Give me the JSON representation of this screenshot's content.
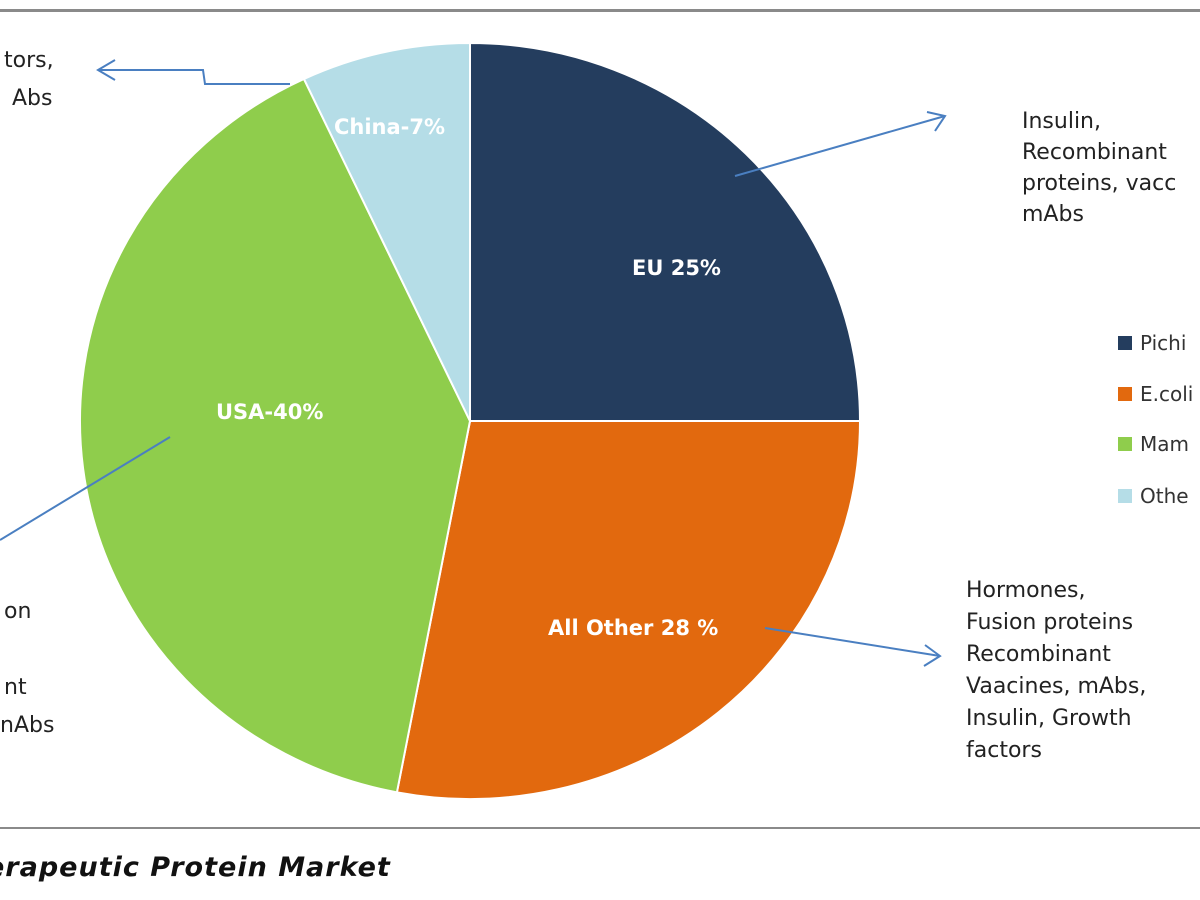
{
  "chart_data": {
    "type": "pie",
    "title": "erapeutic Protein Market",
    "slices": [
      {
        "label": "EU 25%",
        "value": 25,
        "color": "#243d5e"
      },
      {
        "label": "All Other 28 %",
        "value": 28,
        "color": "#e2690e"
      },
      {
        "label": "USA-40%",
        "value": 40,
        "color": "#8fcd4c"
      },
      {
        "label": "China-7%",
        "value": 7,
        "color": "#b5dde7"
      }
    ],
    "legend": [
      {
        "label": "Pichi",
        "color": "#243d5e"
      },
      {
        "label": "E.coli",
        "color": "#e2690e"
      },
      {
        "label": "Mam",
        "color": "#8fcd4c"
      },
      {
        "label": "Othe",
        "color": "#b5dde7"
      }
    ],
    "legend_position": "right",
    "annotations": {
      "eu": [
        "Insulin,",
        "Recombinant",
        "proteins, vacc",
        "mAbs"
      ],
      "other": [
        "Hormones,",
        "Fusion proteins",
        "Recombinant",
        "Vaacines, mAbs,",
        "Insulin, Growth",
        "factors"
      ],
      "china": [
        "tors,",
        "Abs"
      ],
      "usa": [
        "on",
        "",
        "nt",
        "nAbs"
      ]
    },
    "arrow_color": "#4a7fc1"
  }
}
